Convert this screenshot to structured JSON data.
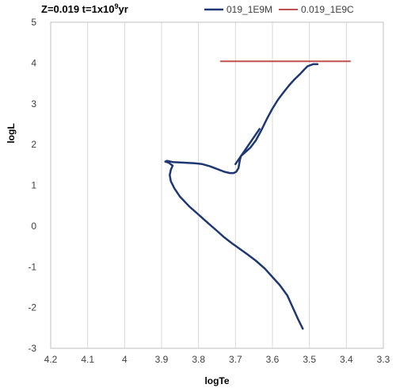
{
  "chart_data": {
    "type": "line",
    "title": {
      "prefix": "Z=0.019 t=1x10",
      "superscript": "9",
      "suffix": "yr"
    },
    "xlabel": "logTe",
    "ylabel": "logL",
    "xlim": [
      4.2,
      3.3
    ],
    "ylim": [
      -3,
      5
    ],
    "x_reversed": true,
    "x_ticks": [
      "4.2",
      "4.1",
      "4",
      "3.9",
      "3.8",
      "3.7",
      "3.6",
      "3.5",
      "3.4",
      "3.3"
    ],
    "y_ticks": [
      "-3",
      "-2",
      "-1",
      "0",
      "1",
      "2",
      "3",
      "4",
      "5"
    ],
    "grid": {
      "vertical": true,
      "horizontal": false
    },
    "legend_position": "top-right",
    "series": [
      {
        "name": "019_1E9M",
        "color": "#1f3874",
        "x": [
          3.518,
          3.53,
          3.545,
          3.56,
          3.58,
          3.6,
          3.62,
          3.645,
          3.67,
          3.69,
          3.71,
          3.73,
          3.75,
          3.775,
          3.8,
          3.825,
          3.85,
          3.865,
          3.875,
          3.878,
          3.875,
          3.87,
          3.88,
          3.89,
          3.885,
          3.87,
          3.85,
          3.83,
          3.81,
          3.79,
          3.77,
          3.75,
          3.73,
          3.715,
          3.705,
          3.698,
          3.692,
          3.69,
          3.688,
          3.685,
          3.675,
          3.66,
          3.645,
          3.63,
          3.615,
          3.6,
          3.585,
          3.57,
          3.555,
          3.54,
          3.525,
          3.515,
          3.505,
          3.49,
          3.478
        ],
        "y": [
          -2.52,
          -2.3,
          -2.0,
          -1.7,
          -1.45,
          -1.25,
          -1.05,
          -0.85,
          -0.68,
          -0.55,
          -0.42,
          -0.28,
          -0.12,
          0.08,
          0.28,
          0.48,
          0.72,
          0.92,
          1.1,
          1.25,
          1.38,
          1.48,
          1.55,
          1.58,
          1.6,
          1.57,
          1.56,
          1.55,
          1.54,
          1.52,
          1.47,
          1.4,
          1.33,
          1.3,
          1.3,
          1.33,
          1.42,
          1.52,
          1.62,
          1.72,
          1.8,
          1.92,
          2.1,
          2.35,
          2.63,
          2.88,
          3.1,
          3.28,
          3.45,
          3.6,
          3.73,
          3.83,
          3.92,
          3.97,
          3.97
        ]
      },
      {
        "name": "0.019_1E9C",
        "color": "#c0504d",
        "x": [
          3.74,
          3.39
        ],
        "y": [
          4.04,
          4.04
        ]
      }
    ],
    "extra_segments": [
      {
        "series": "019_1E9M",
        "x": [
          3.7,
          3.635
        ],
        "y": [
          1.52,
          2.38
        ]
      }
    ]
  }
}
